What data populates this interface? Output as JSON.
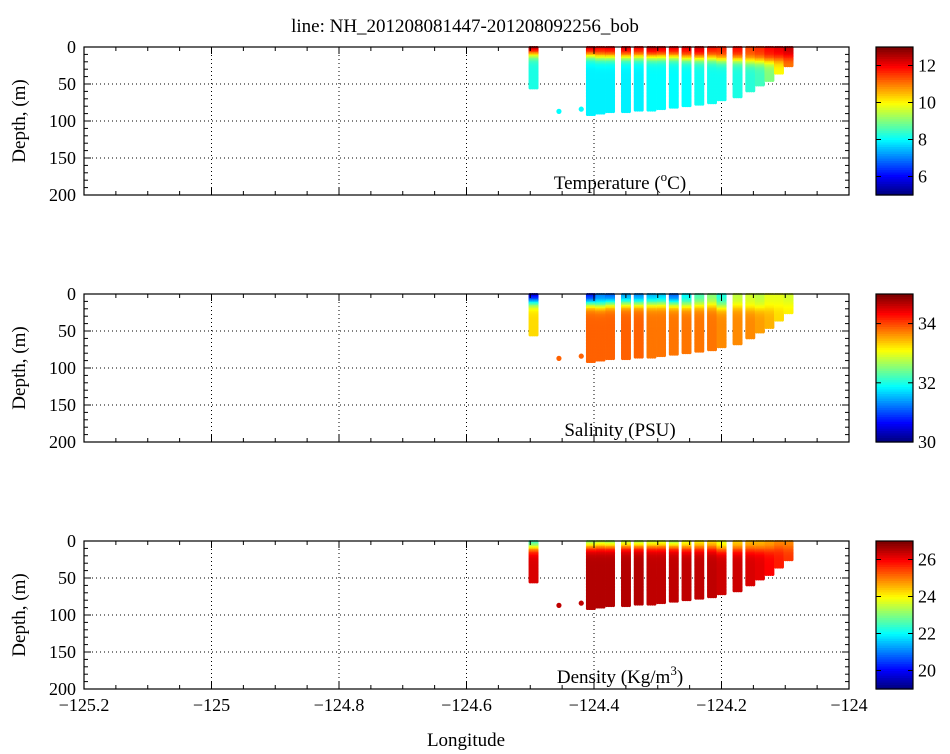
{
  "figure": {
    "title": "line: NH_201208081447-201208092256_bob",
    "xlabel": "Longitude"
  },
  "chart_data": [
    {
      "type": "scatter",
      "name": "temperature",
      "annotation_parts": [
        "Temperature (",
        "o",
        "C)"
      ],
      "ylabel": "Depth, (m)",
      "xlim": [
        -125.2,
        -124.0
      ],
      "ylim": [
        0,
        200
      ],
      "x_ticks": [
        -125.2,
        -125.0,
        -124.8,
        -124.6,
        -124.4,
        -124.2,
        -124.0
      ],
      "y_ticks": [
        0,
        50,
        100,
        150,
        200
      ],
      "colorbar": {
        "min": 5,
        "max": 13,
        "ticks": [
          "12",
          "10",
          "8",
          "6"
        ],
        "tick_values": [
          12,
          10,
          8,
          6
        ]
      },
      "grid": true,
      "profiles": [
        {
          "lon": -124.495,
          "bottom": 55,
          "surface": 13.0,
          "deep": 8.2,
          "mix": 10
        },
        {
          "lon": -124.455,
          "bottom": 0,
          "isolated": [
            {
              "depth": 87,
              "value": 8.0
            }
          ]
        },
        {
          "lon": -124.42,
          "bottom": 0,
          "isolated": [
            {
              "depth": 84,
              "value": 8.0
            }
          ]
        },
        {
          "lon": -124.405,
          "bottom": 92,
          "surface": 12.6,
          "deep": 7.9,
          "mix": 12
        },
        {
          "lon": -124.39,
          "bottom": 90,
          "surface": 12.2,
          "deep": 7.9,
          "mix": 14
        },
        {
          "lon": -124.375,
          "bottom": 88,
          "surface": 12.3,
          "deep": 7.9,
          "mix": 14
        },
        {
          "lon": -124.35,
          "bottom": 87,
          "surface": 12.4,
          "deep": 7.9,
          "mix": 14
        },
        {
          "lon": -124.33,
          "bottom": 86,
          "surface": 12.2,
          "deep": 7.9,
          "mix": 14
        },
        {
          "lon": -124.31,
          "bottom": 85,
          "surface": 12.6,
          "deep": 8.0,
          "mix": 14
        },
        {
          "lon": -124.295,
          "bottom": 84,
          "surface": 12.4,
          "deep": 8.0,
          "mix": 14
        },
        {
          "lon": -124.275,
          "bottom": 82,
          "surface": 12.3,
          "deep": 8.0,
          "mix": 14
        },
        {
          "lon": -124.255,
          "bottom": 80,
          "surface": 12.2,
          "deep": 8.0,
          "mix": 16
        },
        {
          "lon": -124.235,
          "bottom": 77,
          "surface": 12.4,
          "deep": 8.1,
          "mix": 16
        },
        {
          "lon": -124.215,
          "bottom": 75,
          "surface": 12.0,
          "deep": 8.1,
          "mix": 16
        },
        {
          "lon": -124.2,
          "bottom": 72,
          "surface": 11.8,
          "deep": 8.1,
          "mix": 18
        },
        {
          "lon": -124.175,
          "bottom": 68,
          "surface": 12.0,
          "deep": 8.2,
          "mix": 18
        },
        {
          "lon": -124.155,
          "bottom": 60,
          "surface": 11.5,
          "deep": 8.3,
          "mix": 20
        },
        {
          "lon": -124.14,
          "bottom": 52,
          "surface": 11.7,
          "deep": 8.5,
          "mix": 20
        },
        {
          "lon": -124.125,
          "bottom": 45,
          "surface": 12.0,
          "deep": 9.0,
          "mix": 20
        },
        {
          "lon": -124.11,
          "bottom": 35,
          "surface": 12.2,
          "deep": 10.0,
          "mix": 18
        },
        {
          "lon": -124.095,
          "bottom": 25,
          "surface": 12.5,
          "deep": 11.0,
          "mix": 15
        }
      ]
    },
    {
      "type": "scatter",
      "name": "salinity",
      "annotation_parts": [
        "Salinity (PSU)"
      ],
      "ylabel": "Depth, (m)",
      "xlim": [
        -125.2,
        -124.0
      ],
      "ylim": [
        0,
        200
      ],
      "x_ticks": [
        -125.2,
        -125.0,
        -124.8,
        -124.6,
        -124.4,
        -124.2,
        -124.0
      ],
      "y_ticks": [
        0,
        50,
        100,
        150,
        200
      ],
      "colorbar": {
        "min": 30,
        "max": 35,
        "ticks": [
          "34",
          "32",
          "30"
        ],
        "tick_values": [
          34,
          32,
          30
        ]
      },
      "grid": true,
      "profiles": [
        {
          "lon": -124.495,
          "bottom": 55,
          "surface": 30.3,
          "deep": 33.3,
          "mix": 12
        },
        {
          "lon": -124.455,
          "bottom": 0,
          "isolated": [
            {
              "depth": 87,
              "value": 33.9
            }
          ]
        },
        {
          "lon": -124.42,
          "bottom": 0,
          "isolated": [
            {
              "depth": 84,
              "value": 33.9
            }
          ]
        },
        {
          "lon": -124.405,
          "bottom": 92,
          "surface": 30.6,
          "deep": 33.9,
          "mix": 14
        },
        {
          "lon": -124.39,
          "bottom": 90,
          "surface": 31.2,
          "deep": 33.9,
          "mix": 16
        },
        {
          "lon": -124.375,
          "bottom": 88,
          "surface": 31.0,
          "deep": 33.9,
          "mix": 14
        },
        {
          "lon": -124.35,
          "bottom": 87,
          "surface": 31.3,
          "deep": 33.9,
          "mix": 14
        },
        {
          "lon": -124.33,
          "bottom": 86,
          "surface": 31.2,
          "deep": 33.9,
          "mix": 14
        },
        {
          "lon": -124.31,
          "bottom": 85,
          "surface": 31.4,
          "deep": 33.8,
          "mix": 14
        },
        {
          "lon": -124.295,
          "bottom": 84,
          "surface": 31.5,
          "deep": 33.8,
          "mix": 14
        },
        {
          "lon": -124.275,
          "bottom": 82,
          "surface": 31.0,
          "deep": 33.8,
          "mix": 14
        },
        {
          "lon": -124.255,
          "bottom": 80,
          "surface": 31.8,
          "deep": 33.8,
          "mix": 16
        },
        {
          "lon": -124.235,
          "bottom": 77,
          "surface": 32.2,
          "deep": 33.8,
          "mix": 16
        },
        {
          "lon": -124.215,
          "bottom": 75,
          "surface": 32.5,
          "deep": 33.8,
          "mix": 16
        },
        {
          "lon": -124.2,
          "bottom": 72,
          "surface": 32.0,
          "deep": 33.7,
          "mix": 18
        },
        {
          "lon": -124.175,
          "bottom": 68,
          "surface": 32.8,
          "deep": 33.7,
          "mix": 18
        },
        {
          "lon": -124.155,
          "bottom": 60,
          "surface": 32.9,
          "deep": 33.7,
          "mix": 20
        },
        {
          "lon": -124.14,
          "bottom": 52,
          "surface": 32.8,
          "deep": 33.6,
          "mix": 20
        },
        {
          "lon": -124.125,
          "bottom": 45,
          "surface": 33.0,
          "deep": 33.5,
          "mix": 20
        },
        {
          "lon": -124.11,
          "bottom": 35,
          "surface": 33.0,
          "deep": 33.3,
          "mix": 18
        },
        {
          "lon": -124.095,
          "bottom": 25,
          "surface": 32.9,
          "deep": 33.2,
          "mix": 15
        }
      ]
    },
    {
      "type": "scatter",
      "name": "density",
      "annotation_parts": [
        "Density (Kg/m",
        "3",
        ")"
      ],
      "ylabel": "Depth, (m)",
      "xlim": [
        -125.2,
        -124.0
      ],
      "ylim": [
        0,
        200
      ],
      "x_ticks": [
        -125.2,
        -125.0,
        -124.8,
        -124.6,
        -124.4,
        -124.2,
        -124.0
      ],
      "y_ticks": [
        0,
        50,
        100,
        150,
        200
      ],
      "x_tick_labels": [
        "−125.2",
        "−125",
        "−124.8",
        "−124.6",
        "−124.4",
        "−124.2",
        "−124"
      ],
      "colorbar": {
        "min": 19,
        "max": 27,
        "ticks": [
          "26",
          "24",
          "22",
          "20"
        ],
        "tick_values": [
          26,
          24,
          22,
          20
        ]
      },
      "grid": true,
      "profiles": [
        {
          "lon": -124.495,
          "bottom": 55,
          "surface": 22.0,
          "deep": 26.3,
          "mix": 10
        },
        {
          "lon": -124.455,
          "bottom": 0,
          "isolated": [
            {
              "depth": 87,
              "value": 26.5
            }
          ]
        },
        {
          "lon": -124.42,
          "bottom": 0,
          "isolated": [
            {
              "depth": 84,
              "value": 26.5
            }
          ]
        },
        {
          "lon": -124.405,
          "bottom": 92,
          "surface": 22.5,
          "deep": 26.6,
          "mix": 8
        },
        {
          "lon": -124.39,
          "bottom": 90,
          "surface": 22.8,
          "deep": 26.6,
          "mix": 8
        },
        {
          "lon": -124.375,
          "bottom": 88,
          "surface": 22.6,
          "deep": 26.6,
          "mix": 8
        },
        {
          "lon": -124.35,
          "bottom": 87,
          "surface": 22.9,
          "deep": 26.6,
          "mix": 8
        },
        {
          "lon": -124.33,
          "bottom": 86,
          "surface": 22.8,
          "deep": 26.6,
          "mix": 8
        },
        {
          "lon": -124.31,
          "bottom": 85,
          "surface": 23.0,
          "deep": 26.5,
          "mix": 8
        },
        {
          "lon": -124.295,
          "bottom": 84,
          "surface": 23.1,
          "deep": 26.5,
          "mix": 8
        },
        {
          "lon": -124.275,
          "bottom": 82,
          "surface": 22.7,
          "deep": 26.5,
          "mix": 8
        },
        {
          "lon": -124.255,
          "bottom": 80,
          "surface": 23.5,
          "deep": 26.5,
          "mix": 10
        },
        {
          "lon": -124.235,
          "bottom": 77,
          "surface": 23.8,
          "deep": 26.5,
          "mix": 10
        },
        {
          "lon": -124.215,
          "bottom": 75,
          "surface": 24.0,
          "deep": 26.5,
          "mix": 10
        },
        {
          "lon": -124.2,
          "bottom": 72,
          "surface": 23.6,
          "deep": 26.4,
          "mix": 12
        },
        {
          "lon": -124.175,
          "bottom": 68,
          "surface": 24.2,
          "deep": 26.4,
          "mix": 12
        },
        {
          "lon": -124.155,
          "bottom": 60,
          "surface": 24.4,
          "deep": 26.3,
          "mix": 12
        },
        {
          "lon": -124.14,
          "bottom": 52,
          "surface": 24.4,
          "deep": 26.2,
          "mix": 12
        },
        {
          "lon": -124.125,
          "bottom": 45,
          "surface": 24.6,
          "deep": 26.0,
          "mix": 12
        },
        {
          "lon": -124.11,
          "bottom": 35,
          "surface": 24.8,
          "deep": 25.8,
          "mix": 10
        },
        {
          "lon": -124.095,
          "bottom": 25,
          "surface": 24.8,
          "deep": 25.6,
          "mix": 10
        }
      ]
    }
  ]
}
